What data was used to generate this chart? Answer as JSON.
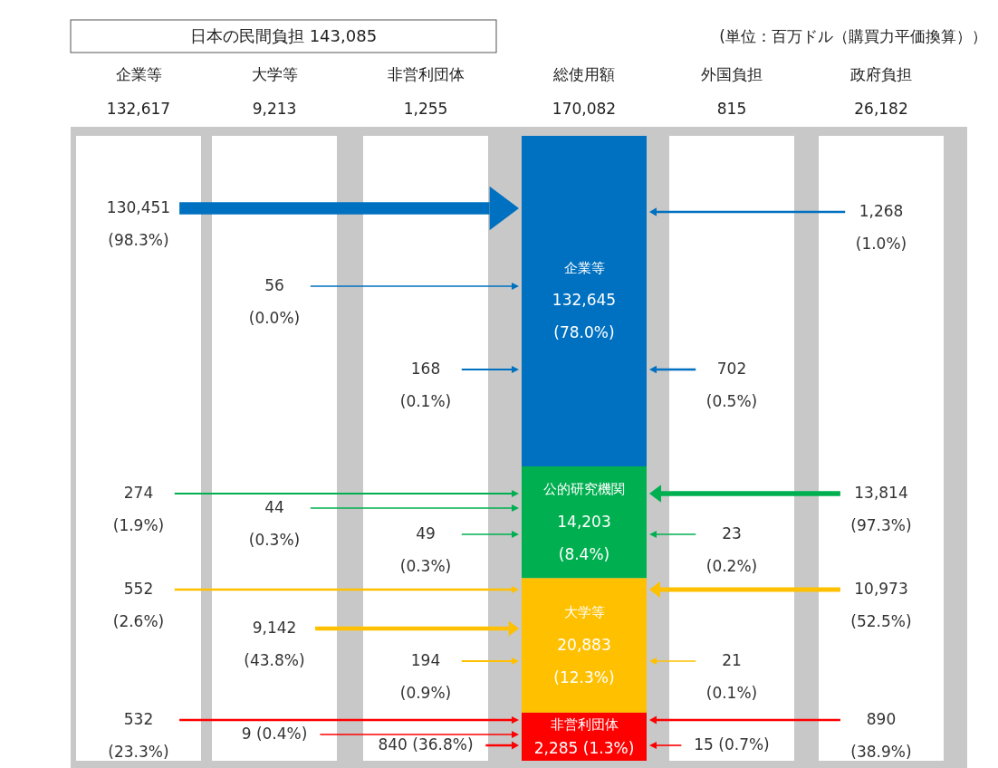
{
  "chart_data": {
    "type": "other",
    "title": "日本の民間負担 143,085",
    "annotations": [
      "(単位：百万ドル（購買力平価換算））",
      "132,617",
      "9,213",
      "1,255",
      "170,082",
      "815",
      "26,182"
    ],
    "legend": "center",
    "categories": [
      "企業等",
      "大学等",
      "非営利団体",
      "総使用額",
      "外国負担",
      "政府負担"
    ],
    "series": [
      {
        "name": "企業等",
        "color": "#0070c0",
        "values": [
          130451,
          56,
          168,
          132645,
          702,
          1268
        ],
        "value_labels": [
          "130,451\n(98.3%)",
          "56\n(0.0%)",
          "168\n(0.1%)",
          "132,645\n(78.0%)",
          "702\n(0.5%)",
          "1,268\n(1.0%)"
        ]
      },
      {
        "name": "公的研究機関",
        "color": "#00b050",
        "values": [
          274,
          44,
          49,
          14203,
          23,
          13814
        ],
        "value_labels": [
          "274\n(1.9%)",
          "44\n(0.3%)",
          "49\n(0.3%)",
          "14,203\n(8.4%)",
          "23\n(0.2%)",
          "13,814\n(97.3%)"
        ]
      },
      {
        "name": "大学等",
        "color": "#ffc000",
        "values": [
          552,
          9142,
          194,
          20883,
          21,
          10973
        ],
        "value_labels": [
          "552\n(2.6%)",
          "9,142\n(43.8%)",
          "194\n(0.9%)",
          "20,883\n(12.3%)",
          "21\n(0.1%)",
          "10,973\n(52.5%)"
        ]
      },
      {
        "name": "非営利団体",
        "color": "#ff0000",
        "values": [
          532,
          9,
          840,
          2285,
          15,
          890
        ],
        "value_labels": [
          "532\n(23.3%)",
          "9 (0.4%)",
          "840 (36.8%)",
          "2,285 (1.3%)",
          "15 (0.7%)",
          "890\n(38.9%)"
        ]
      }
    ]
  }
}
